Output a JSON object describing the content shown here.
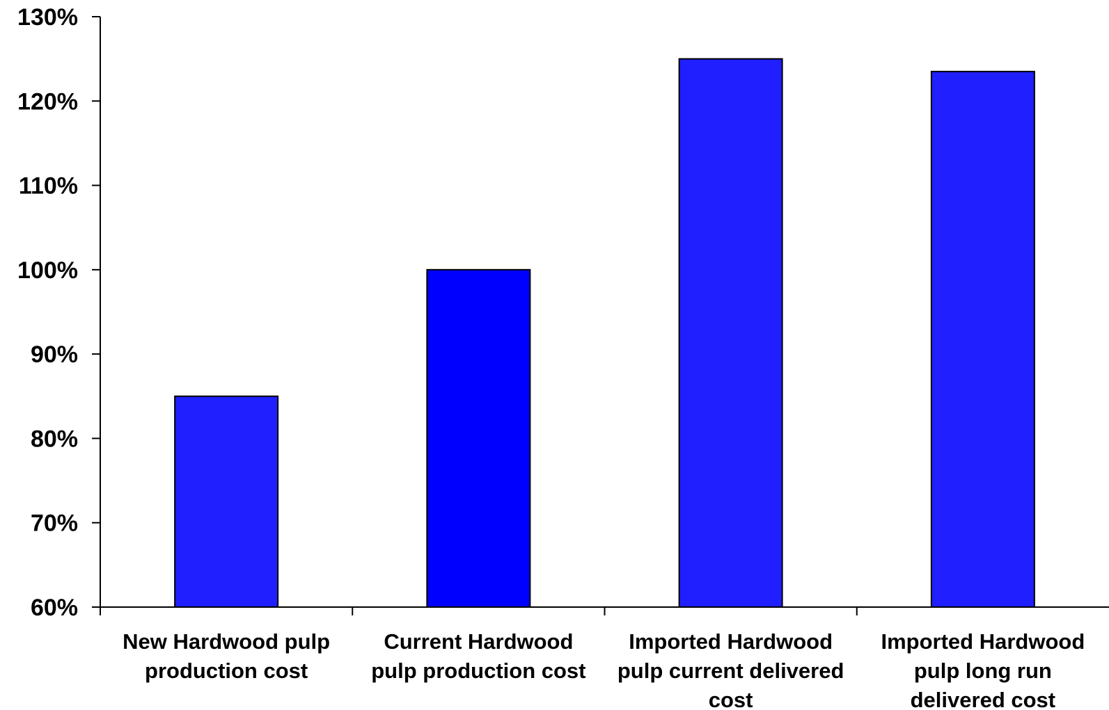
{
  "chart_data": {
    "type": "bar",
    "title": "",
    "xlabel": "",
    "ylabel": "",
    "categories": [
      [
        "New Hardwood pulp",
        "production cost"
      ],
      [
        "Current Hardwood",
        "pulp production cost"
      ],
      [
        "Imported Hardwood",
        "pulp current delivered",
        "cost"
      ],
      [
        "Imported Hardwood",
        "pulp long run",
        "delivered cost"
      ]
    ],
    "values": [
      85,
      100,
      125,
      123.5
    ],
    "ylim": [
      60,
      130
    ],
    "yticks": [
      "60%",
      "70%",
      "80%",
      "90%",
      "100%",
      "110%",
      "120%",
      "130%"
    ],
    "ytick_values": [
      60,
      70,
      80,
      90,
      100,
      110,
      120,
      130
    ],
    "bar_colors": [
      "#1f1fff",
      "#0000ff",
      "#1f1fff",
      "#1f1fff"
    ],
    "grid": false,
    "legend": "none"
  }
}
